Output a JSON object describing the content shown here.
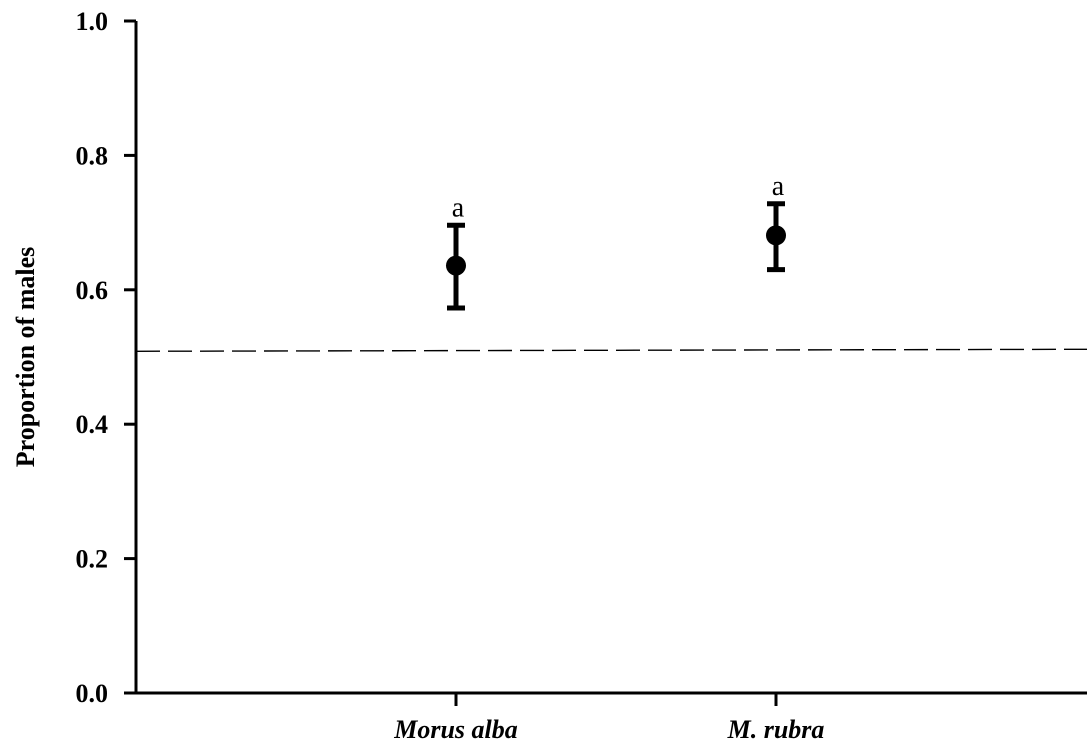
{
  "chart_data": {
    "type": "scatter",
    "title": "",
    "xlabel": "",
    "ylabel": "Proportion of males",
    "categories": [
      "Morus alba",
      "M. rubra"
    ],
    "points": [
      {
        "category": "Morus alba",
        "value": 0.636,
        "lower": 0.573,
        "upper": 0.696,
        "annotation": "a"
      },
      {
        "category": "M. rubra",
        "value": 0.681,
        "lower": 0.63,
        "upper": 0.728,
        "annotation": "a"
      }
    ],
    "reference_line": {
      "y": 0.51,
      "style": "dashed"
    },
    "ylim": [
      0.0,
      1.0
    ],
    "yticks": [
      0.0,
      0.2,
      0.4,
      0.6,
      0.8,
      1.0
    ],
    "ytick_labels": [
      "0.0",
      "0.2",
      "0.4",
      "0.6",
      "0.8",
      "1.0"
    ],
    "grid": false,
    "legend": "none",
    "colors": {
      "marker": "#000000",
      "axis": "#000000",
      "reference_line": "#000000"
    }
  }
}
